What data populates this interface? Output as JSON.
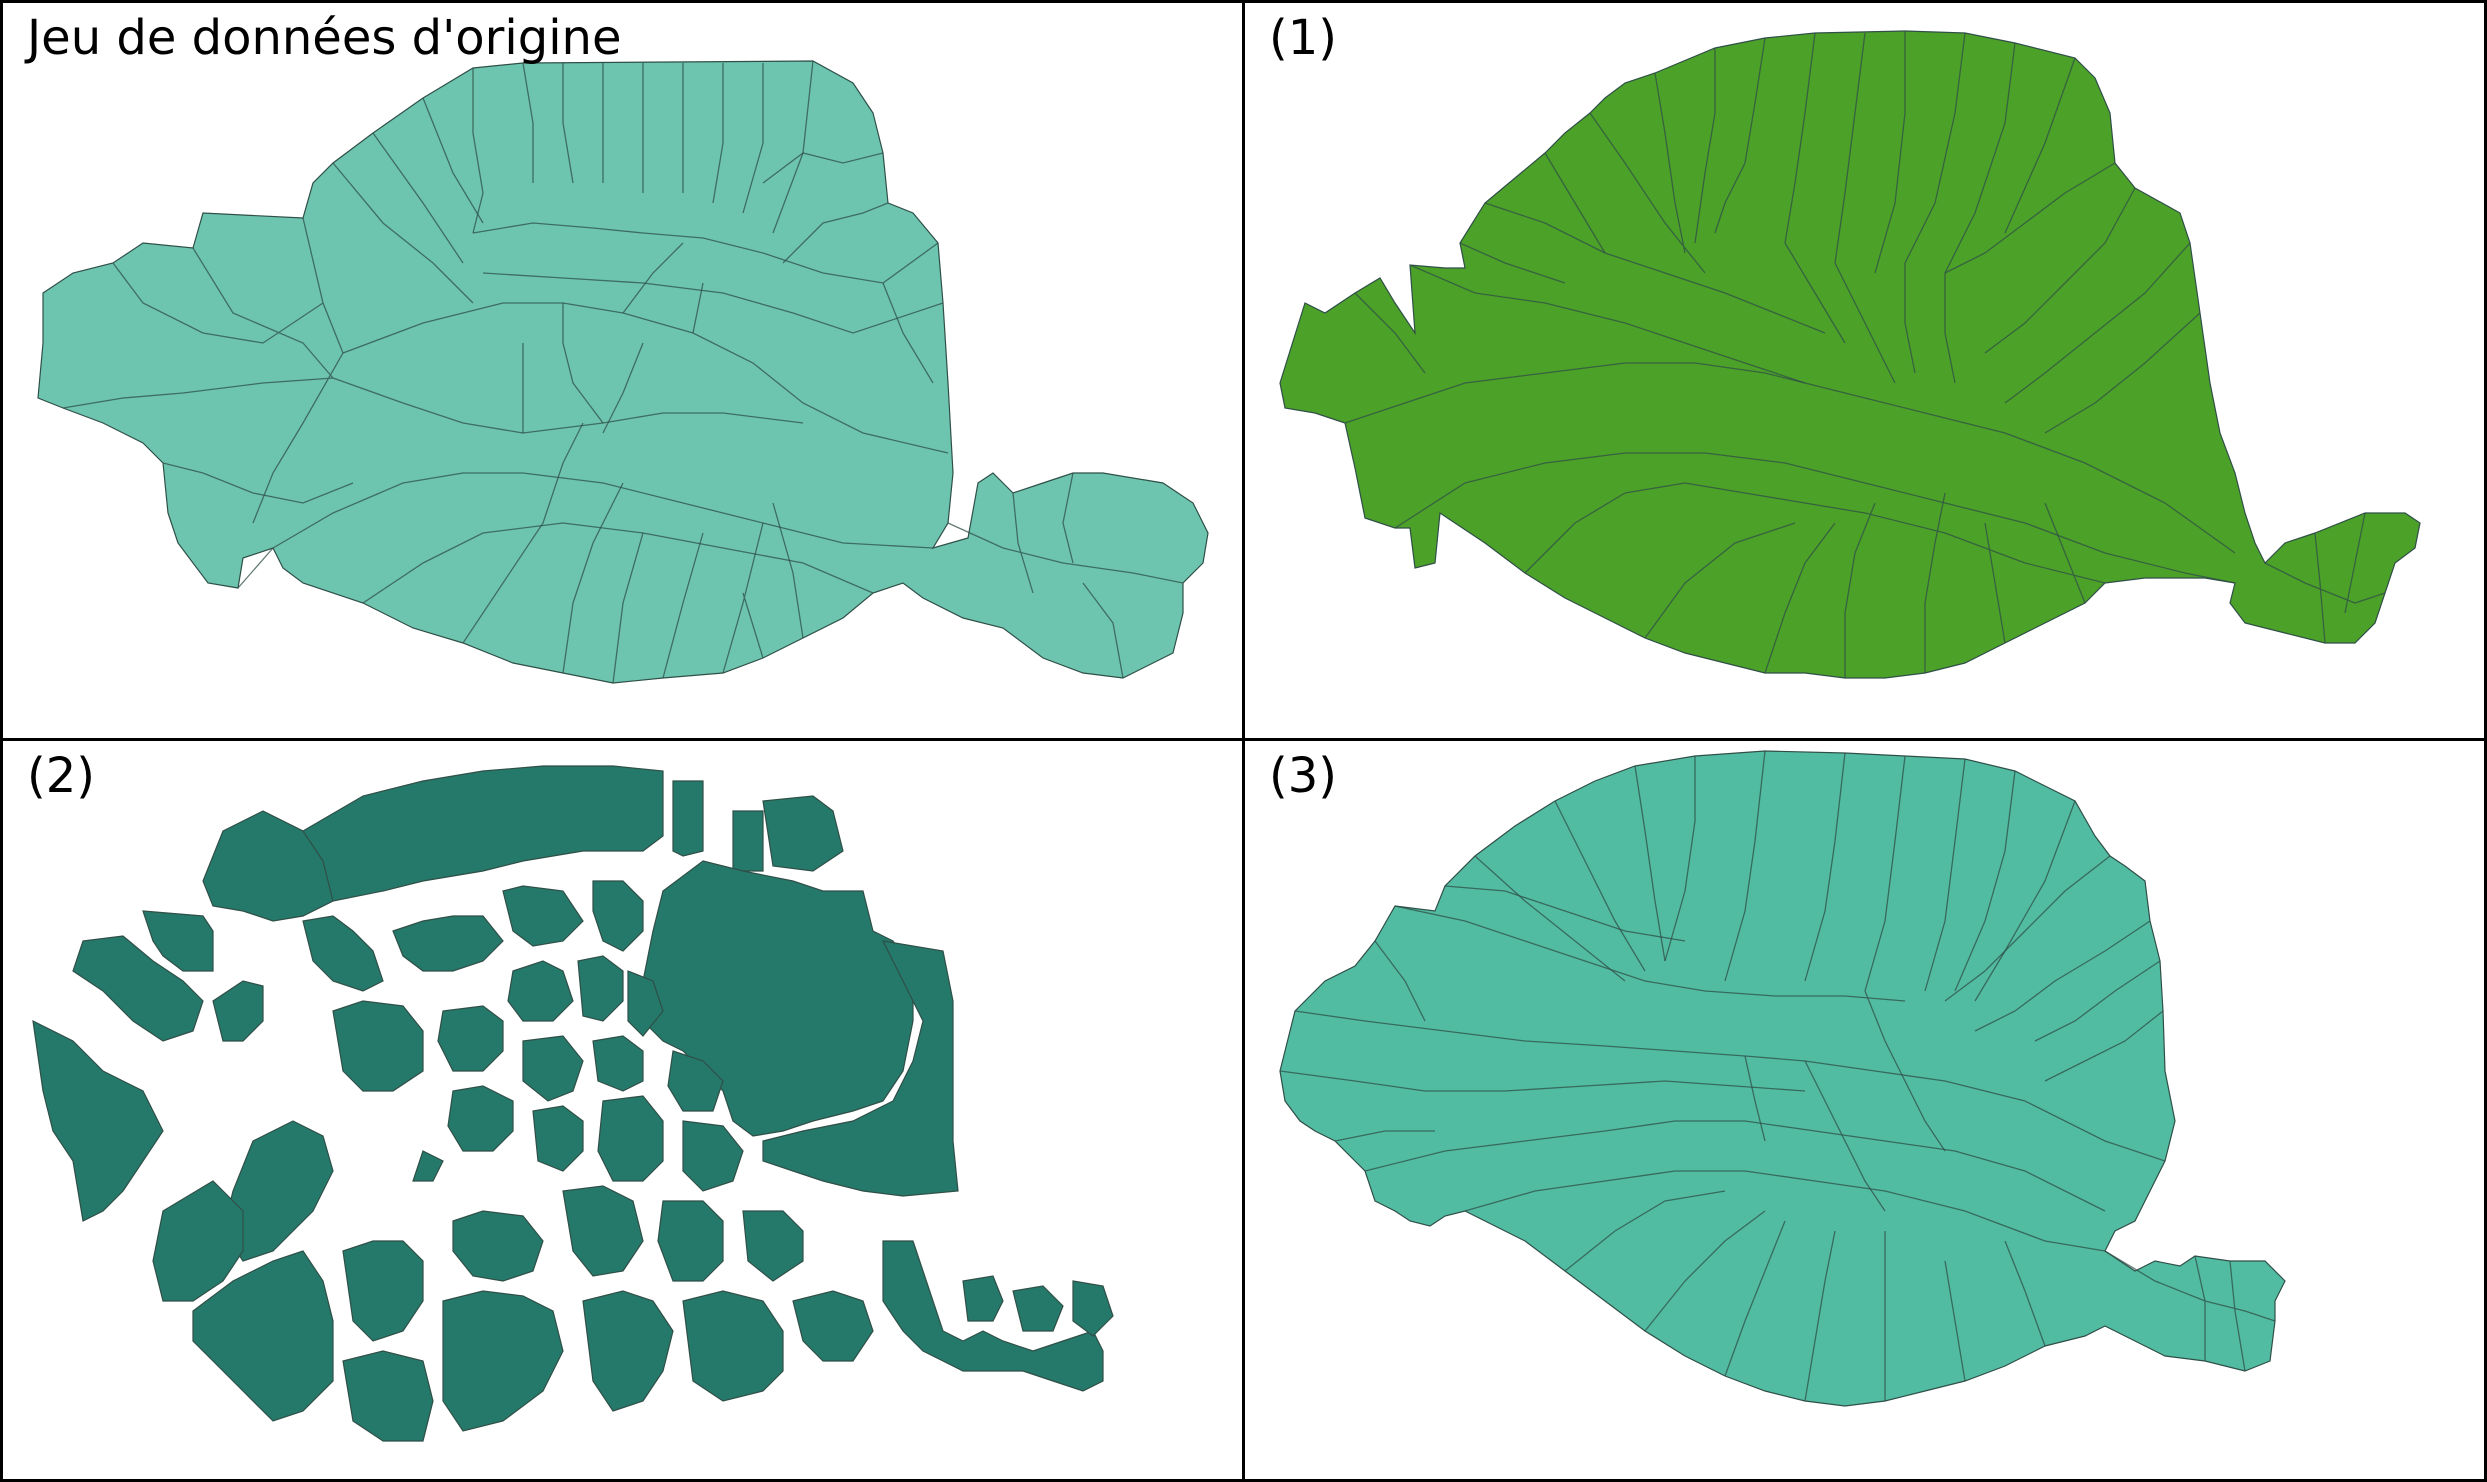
{
  "panels": [
    {
      "label": "Jeu de données d'origine",
      "fill": "#6dc5b0"
    },
    {
      "label": "(1)",
      "fill": "#4ca128"
    },
    {
      "label": "(2)",
      "fill": "#25796b"
    },
    {
      "label": "(3)",
      "fill": "#52bca2"
    }
  ],
  "line_color": "#2f4f47"
}
